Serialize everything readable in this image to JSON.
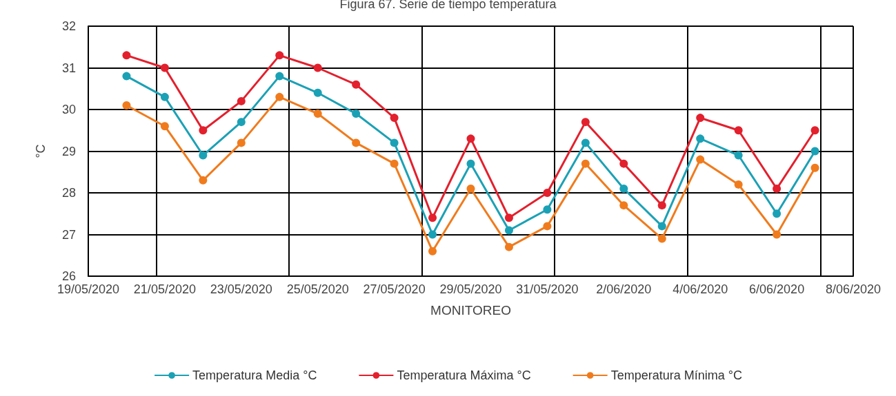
{
  "chart_data": {
    "type": "line",
    "title": "Figura 67. Serie de tiempo temperatura",
    "xlabel": "MONITOREO",
    "ylabel": "°C",
    "x": [
      "2020-05-20",
      "2020-05-21",
      "2020-05-22",
      "2020-05-23",
      "2020-05-24",
      "2020-05-25",
      "2020-05-26",
      "2020-05-27",
      "2020-05-28",
      "2020-05-29",
      "2020-05-30",
      "2020-05-31",
      "2020-06-01",
      "2020-06-02",
      "2020-06-03",
      "2020-06-04",
      "2020-06-05",
      "2020-06-06",
      "2020-06-07"
    ],
    "series": [
      {
        "name": "Temperatura Media °C",
        "color": "#1ba1b5",
        "values": [
          30.8,
          30.3,
          28.9,
          29.7,
          30.8,
          30.4,
          29.9,
          29.2,
          27.0,
          28.7,
          27.1,
          27.6,
          29.2,
          28.1,
          27.2,
          29.3,
          28.9,
          27.5,
          29.0
        ]
      },
      {
        "name": "Temperatura Máxima °C",
        "color": "#e3202d",
        "values": [
          31.3,
          31.0,
          29.5,
          30.2,
          31.3,
          31.0,
          30.6,
          29.8,
          27.4,
          29.3,
          27.4,
          28.0,
          29.7,
          28.7,
          27.7,
          29.8,
          29.5,
          28.1,
          29.5
        ]
      },
      {
        "name": "Temperatura Mínima °C",
        "color": "#f07b1d",
        "values": [
          30.1,
          29.6,
          28.3,
          29.2,
          30.3,
          29.9,
          29.2,
          28.7,
          26.6,
          28.1,
          26.7,
          27.2,
          28.7,
          27.7,
          26.9,
          28.8,
          28.2,
          27.0,
          28.6
        ]
      }
    ],
    "xlim": [
      "2020-05-19",
      "2020-06-08"
    ],
    "xticks": [
      {
        "value": "2020-05-19",
        "label": "19/05/2020"
      },
      {
        "value": "2020-05-21",
        "label": "21/05/2020"
      },
      {
        "value": "2020-05-23",
        "label": "23/05/2020"
      },
      {
        "value": "2020-05-25",
        "label": "25/05/2020"
      },
      {
        "value": "2020-05-27",
        "label": "27/05/2020"
      },
      {
        "value": "2020-05-29",
        "label": "29/05/2020"
      },
      {
        "value": "2020-05-31",
        "label": "31/05/2020"
      },
      {
        "value": "2020-06-02",
        "label": "2/06/2020"
      },
      {
        "value": "2020-06-04",
        "label": "4/06/2020"
      },
      {
        "value": "2020-06-06",
        "label": "6/06/2020"
      },
      {
        "value": "2020-06-08",
        "label": "8/06/2020"
      }
    ],
    "ylim": [
      26,
      32
    ],
    "yticks": [
      26,
      27,
      28,
      29,
      30,
      31,
      32
    ],
    "grid": true,
    "legend": "bottom",
    "marker": "circle",
    "line_style": "solid"
  }
}
